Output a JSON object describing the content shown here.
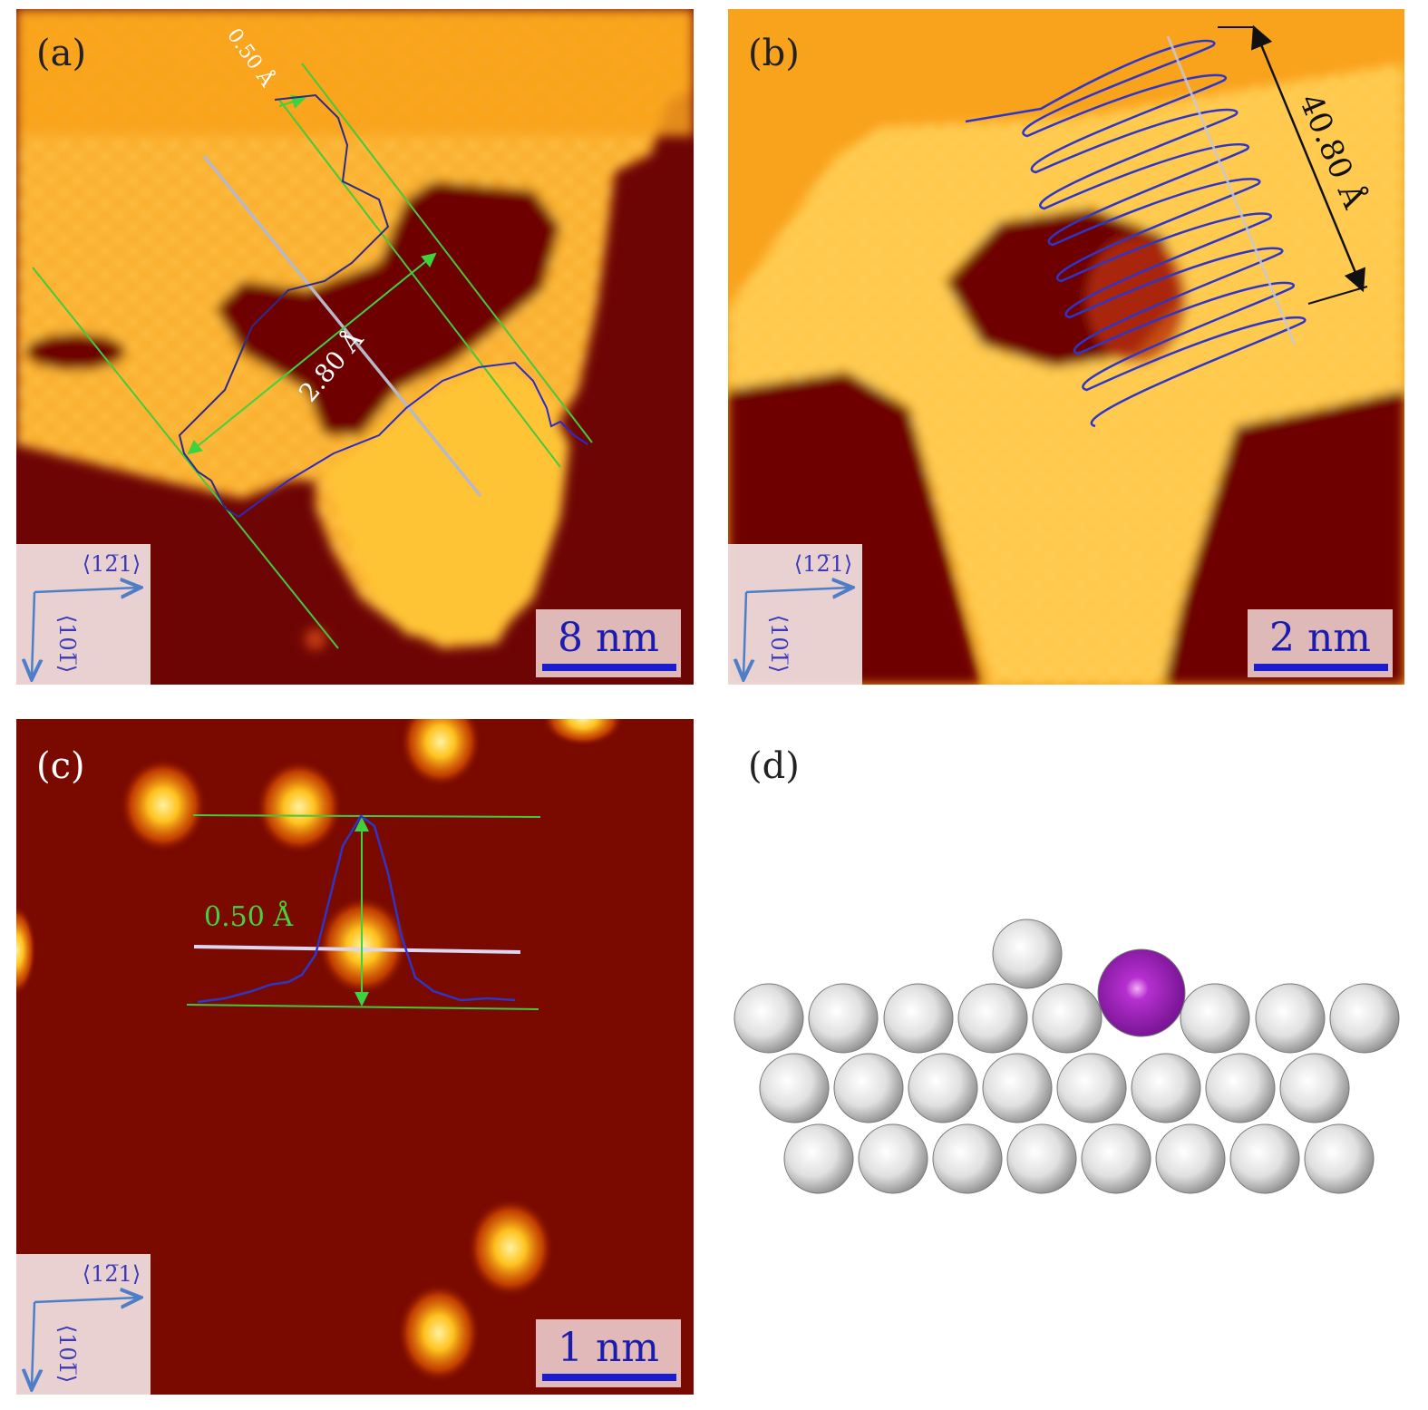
{
  "panels": [
    {
      "label": "(a)",
      "annotations": [
        "0.50 Å",
        "2.80 Å"
      ],
      "axis_x": "⟨12̅1⟩",
      "axis_y": "⟨101̅⟩",
      "scale_bar": "8 nm"
    },
    {
      "label": "(b)",
      "annotations": [
        "40.80 Å"
      ],
      "axis_x": "⟨12̅1⟩",
      "axis_y": "⟨101̅⟩",
      "scale_bar": "2 nm"
    },
    {
      "label": "(c)",
      "annotations": [
        "0.50 Å"
      ],
      "axis_x": "⟨12̅1⟩",
      "axis_y": "⟨101̅⟩",
      "scale_bar": "1 nm"
    },
    {
      "label": "(d)"
    }
  ]
}
